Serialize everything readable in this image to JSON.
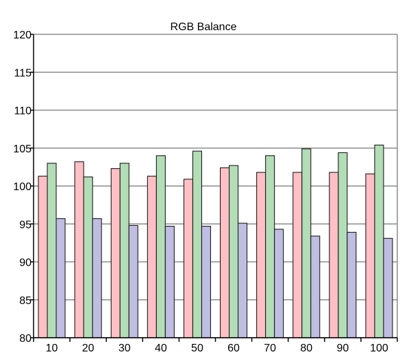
{
  "chart_data": {
    "type": "bar",
    "title": "RGB Balance",
    "xlabel": "",
    "ylabel": "",
    "categories": [
      "10",
      "20",
      "30",
      "40",
      "50",
      "60",
      "70",
      "80",
      "90",
      "100"
    ],
    "ylim": [
      80,
      120
    ],
    "yticks": [
      80,
      85,
      90,
      95,
      100,
      105,
      110,
      115,
      120
    ],
    "grid": true,
    "legend": "none",
    "series": [
      {
        "color": "#FFC0C5",
        "values": [
          101.3,
          103.2,
          102.3,
          101.3,
          100.9,
          102.4,
          101.8,
          101.8,
          101.8,
          101.6
        ]
      },
      {
        "color": "#B2DDB7",
        "values": [
          103.0,
          101.2,
          103.0,
          104.0,
          104.6,
          102.7,
          104.0,
          104.9,
          104.4,
          105.4
        ]
      },
      {
        "color": "#C0BDE2",
        "values": [
          95.7,
          95.7,
          94.8,
          94.7,
          94.7,
          95.1,
          94.3,
          93.4,
          93.9,
          93.1
        ]
      }
    ]
  }
}
